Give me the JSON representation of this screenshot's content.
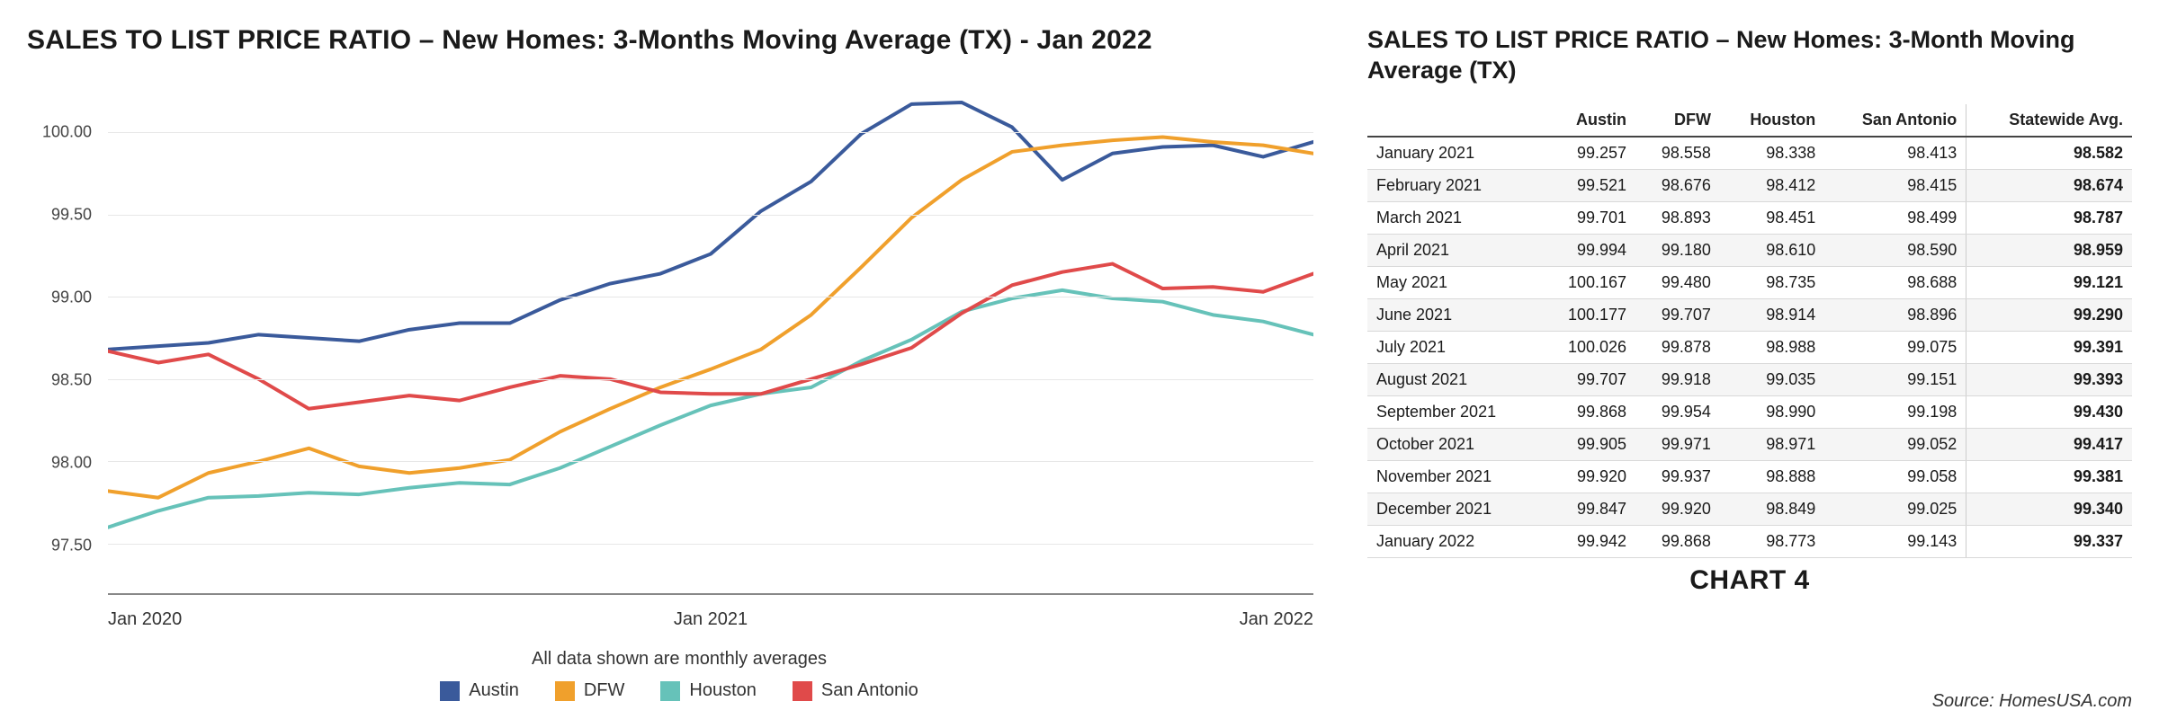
{
  "colors": {
    "background": "#ffffff",
    "grid": "#e7e7e7",
    "axis": "#888888",
    "text": "#1a1a1a",
    "axis_label": "#444444"
  },
  "chart": {
    "title": "SALES TO LIST PRICE RATIO – New Homes: 3-Months Moving Average (TX)  - Jan 2022",
    "title_fontsize": 30,
    "title_fontweight": 700,
    "type": "line",
    "line_width": 4,
    "ylim": [
      97.2,
      100.3
    ],
    "yticks": [
      97.5,
      98.0,
      98.5,
      99.0,
      99.5,
      100.0
    ],
    "ytick_labels": [
      "97.50",
      "98.00",
      "98.50",
      "99.00",
      "99.50",
      "100.00"
    ],
    "x_count": 25,
    "x_tick_indices": [
      0,
      12,
      24
    ],
    "x_tick_labels": [
      "Jan 2020",
      "Jan 2021",
      "Jan 2022"
    ],
    "subcaption": "All data shown are monthly averages",
    "subcaption_fontsize": 20,
    "axis_fontsize": 19,
    "series": [
      {
        "name": "Austin",
        "color": "#3a5a9b",
        "values": [
          98.68,
          98.7,
          98.72,
          98.77,
          98.75,
          98.73,
          98.8,
          98.84,
          98.84,
          98.98,
          99.08,
          99.14,
          99.26,
          99.52,
          99.7,
          99.99,
          100.17,
          100.18,
          100.03,
          99.71,
          99.87,
          99.91,
          99.92,
          99.85,
          99.94
        ]
      },
      {
        "name": "DFW",
        "color": "#f0a02c",
        "values": [
          97.82,
          97.78,
          97.93,
          98.0,
          98.08,
          97.97,
          97.93,
          97.96,
          98.01,
          98.18,
          98.32,
          98.45,
          98.56,
          98.68,
          98.89,
          99.18,
          99.48,
          99.71,
          99.88,
          99.92,
          99.95,
          99.97,
          99.94,
          99.92,
          99.87
        ]
      },
      {
        "name": "Houston",
        "color": "#66c2b9",
        "values": [
          97.6,
          97.7,
          97.78,
          97.79,
          97.81,
          97.8,
          97.84,
          97.87,
          97.86,
          97.96,
          98.09,
          98.22,
          98.34,
          98.41,
          98.45,
          98.61,
          98.74,
          98.91,
          98.99,
          99.04,
          98.99,
          98.97,
          98.89,
          98.85,
          98.77
        ]
      },
      {
        "name": "San Antonio",
        "color": "#e04a4a",
        "values": [
          98.67,
          98.6,
          98.65,
          98.5,
          98.32,
          98.36,
          98.4,
          98.37,
          98.45,
          98.52,
          98.5,
          98.42,
          98.41,
          98.41,
          98.5,
          98.59,
          98.69,
          98.9,
          99.07,
          99.15,
          99.2,
          99.05,
          99.06,
          99.03,
          99.14
        ]
      }
    ],
    "legend_fontsize": 20
  },
  "table": {
    "title": "SALES TO LIST PRICE RATIO – New Homes:  3-Month Moving Average (TX)",
    "title_fontsize": 27,
    "title_fontweight": 700,
    "font_size": 18,
    "shade_color": "#f5f5f5",
    "border_color": "#d9d9d9",
    "columns": [
      "",
      "Austin",
      "DFW",
      "Houston",
      "San Antonio",
      "Statewide Avg."
    ],
    "col_align": [
      "left",
      "right",
      "right",
      "right",
      "right",
      "right"
    ],
    "bold_last_col": true,
    "rows": [
      [
        "January 2021",
        "99.257",
        "98.558",
        "98.338",
        "98.413",
        "98.582"
      ],
      [
        "February 2021",
        "99.521",
        "98.676",
        "98.412",
        "98.415",
        "98.674"
      ],
      [
        "March 2021",
        "99.701",
        "98.893",
        "98.451",
        "98.499",
        "98.787"
      ],
      [
        "April 2021",
        "99.994",
        "99.180",
        "98.610",
        "98.590",
        "98.959"
      ],
      [
        "May 2021",
        "100.167",
        "99.480",
        "98.735",
        "98.688",
        "99.121"
      ],
      [
        "June 2021",
        "100.177",
        "99.707",
        "98.914",
        "98.896",
        "99.290"
      ],
      [
        "July 2021",
        "100.026",
        "99.878",
        "98.988",
        "99.075",
        "99.391"
      ],
      [
        "August 2021",
        "99.707",
        "99.918",
        "99.035",
        "99.151",
        "99.393"
      ],
      [
        "September 2021",
        "99.868",
        "99.954",
        "98.990",
        "99.198",
        "99.430"
      ],
      [
        "October 2021",
        "99.905",
        "99.971",
        "98.971",
        "99.052",
        "99.417"
      ],
      [
        "November 2021",
        "99.920",
        "99.937",
        "98.888",
        "99.058",
        "99.381"
      ],
      [
        "December 2021",
        "99.847",
        "99.920",
        "98.849",
        "99.025",
        "99.340"
      ],
      [
        "January 2022",
        "99.942",
        "99.868",
        "98.773",
        "99.143",
        "99.337"
      ]
    ],
    "shaded_rows": [
      1,
      3,
      5,
      7,
      9,
      11
    ]
  },
  "footer": {
    "chart_label": "CHART 4",
    "chart_label_fontsize": 30,
    "chart_label_fontweight": 800,
    "source": "Source: HomesUSA.com",
    "source_fontsize": 20
  }
}
